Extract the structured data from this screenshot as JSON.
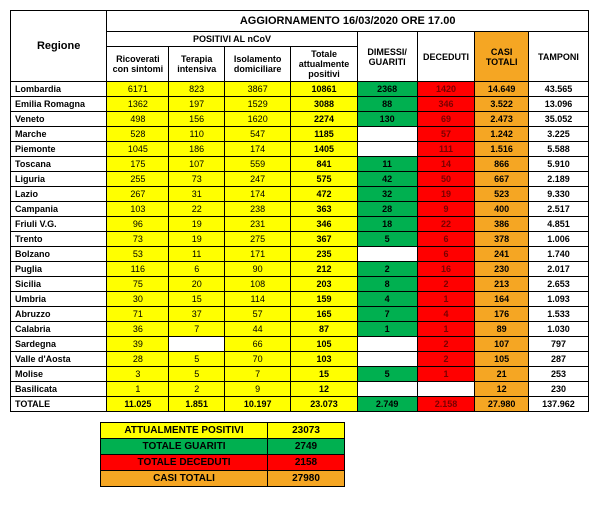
{
  "title": "AGGIORNAMENTO 16/03/2020 ORE 17.00",
  "headers": {
    "regione": "Regione",
    "positivi_group": "POSITIVI AL nCoV",
    "ricoverati": "Ricoverati con sintomi",
    "terapia": "Terapia intensiva",
    "isolamento": "Isolamento domiciliare",
    "totale_pos": "Totale attualmente positivi",
    "dimessi": "DIMESSI/ GUARITI",
    "deceduti": "DECEDUTI",
    "casi_totali": "CASI TOTALI",
    "tamponi": "TAMPONI"
  },
  "rows": [
    {
      "region": "Lombardia",
      "ric": "6171",
      "ter": "823",
      "iso": "3867",
      "tot": "10861",
      "dim": "2368",
      "dec": "1420",
      "casi": "14.649",
      "tam": "43.565"
    },
    {
      "region": "Emilia Romagna",
      "ric": "1362",
      "ter": "197",
      "iso": "1529",
      "tot": "3088",
      "dim": "88",
      "dec": "346",
      "casi": "3.522",
      "tam": "13.096"
    },
    {
      "region": "Veneto",
      "ric": "498",
      "ter": "156",
      "iso": "1620",
      "tot": "2274",
      "dim": "130",
      "dec": "69",
      "casi": "2.473",
      "tam": "35.052"
    },
    {
      "region": "Marche",
      "ric": "528",
      "ter": "110",
      "iso": "547",
      "tot": "1185",
      "dim": "",
      "dec": "57",
      "casi": "1.242",
      "tam": "3.225"
    },
    {
      "region": "Piemonte",
      "ric": "1045",
      "ter": "186",
      "iso": "174",
      "tot": "1405",
      "dim": "",
      "dec": "111",
      "casi": "1.516",
      "tam": "5.588"
    },
    {
      "region": "Toscana",
      "ric": "175",
      "ter": "107",
      "iso": "559",
      "tot": "841",
      "dim": "11",
      "dec": "14",
      "casi": "866",
      "tam": "5.910"
    },
    {
      "region": "Liguria",
      "ric": "255",
      "ter": "73",
      "iso": "247",
      "tot": "575",
      "dim": "42",
      "dec": "50",
      "casi": "667",
      "tam": "2.189"
    },
    {
      "region": "Lazio",
      "ric": "267",
      "ter": "31",
      "iso": "174",
      "tot": "472",
      "dim": "32",
      "dec": "19",
      "casi": "523",
      "tam": "9.330"
    },
    {
      "region": "Campania",
      "ric": "103",
      "ter": "22",
      "iso": "238",
      "tot": "363",
      "dim": "28",
      "dec": "9",
      "casi": "400",
      "tam": "2.517"
    },
    {
      "region": "Friuli V.G.",
      "ric": "96",
      "ter": "19",
      "iso": "231",
      "tot": "346",
      "dim": "18",
      "dec": "22",
      "casi": "386",
      "tam": "4.851"
    },
    {
      "region": "Trento",
      "ric": "73",
      "ter": "19",
      "iso": "275",
      "tot": "367",
      "dim": "5",
      "dec": "6",
      "casi": "378",
      "tam": "1.006"
    },
    {
      "region": "Bolzano",
      "ric": "53",
      "ter": "11",
      "iso": "171",
      "tot": "235",
      "dim": "",
      "dec": "6",
      "casi": "241",
      "tam": "1.740"
    },
    {
      "region": "Puglia",
      "ric": "116",
      "ter": "6",
      "iso": "90",
      "tot": "212",
      "dim": "2",
      "dec": "16",
      "casi": "230",
      "tam": "2.017"
    },
    {
      "region": "Sicilia",
      "ric": "75",
      "ter": "20",
      "iso": "108",
      "tot": "203",
      "dim": "8",
      "dec": "2",
      "casi": "213",
      "tam": "2.653"
    },
    {
      "region": "Umbria",
      "ric": "30",
      "ter": "15",
      "iso": "114",
      "tot": "159",
      "dim": "4",
      "dec": "1",
      "casi": "164",
      "tam": "1.093"
    },
    {
      "region": "Abruzzo",
      "ric": "71",
      "ter": "37",
      "iso": "57",
      "tot": "165",
      "dim": "7",
      "dec": "4",
      "casi": "176",
      "tam": "1.533"
    },
    {
      "region": "Calabria",
      "ric": "36",
      "ter": "7",
      "iso": "44",
      "tot": "87",
      "dim": "1",
      "dec": "1",
      "casi": "89",
      "tam": "1.030"
    },
    {
      "region": "Sardegna",
      "ric": "39",
      "ter": "",
      "iso": "66",
      "tot": "105",
      "dim": "",
      "dec": "2",
      "casi": "107",
      "tam": "797"
    },
    {
      "region": "Valle d'Aosta",
      "ric": "28",
      "ter": "5",
      "iso": "70",
      "tot": "103",
      "dim": "",
      "dec": "2",
      "casi": "105",
      "tam": "287"
    },
    {
      "region": "Molise",
      "ric": "3",
      "ter": "5",
      "iso": "7",
      "tot": "15",
      "dim": "5",
      "dec": "1",
      "casi": "21",
      "tam": "253"
    },
    {
      "region": "Basilicata",
      "ric": "1",
      "ter": "2",
      "iso": "9",
      "tot": "12",
      "dim": "",
      "dec": "",
      "casi": "12",
      "tam": "230"
    }
  ],
  "totals": {
    "region": "TOTALE",
    "ric": "11.025",
    "ter": "1.851",
    "iso": "10.197",
    "tot": "23.073",
    "dim": "2.749",
    "dec": "2.158",
    "casi": "27.980",
    "tam": "137.962"
  },
  "summary": [
    {
      "label": "ATTUALMENTE POSITIVI",
      "value": "23073",
      "bg": "#ffff00"
    },
    {
      "label": "TOTALE GUARITI",
      "value": "2749",
      "bg": "#00b050"
    },
    {
      "label": "TOTALE DECEDUTI",
      "value": "2158",
      "bg": "#ff0000"
    },
    {
      "label": "CASI TOTALI",
      "value": "27980",
      "bg": "#f5a623"
    }
  ],
  "colors": {
    "yellow": "#ffff00",
    "green": "#00b050",
    "red": "#ff0000",
    "orange": "#f5a623",
    "white": "#ffffff"
  }
}
